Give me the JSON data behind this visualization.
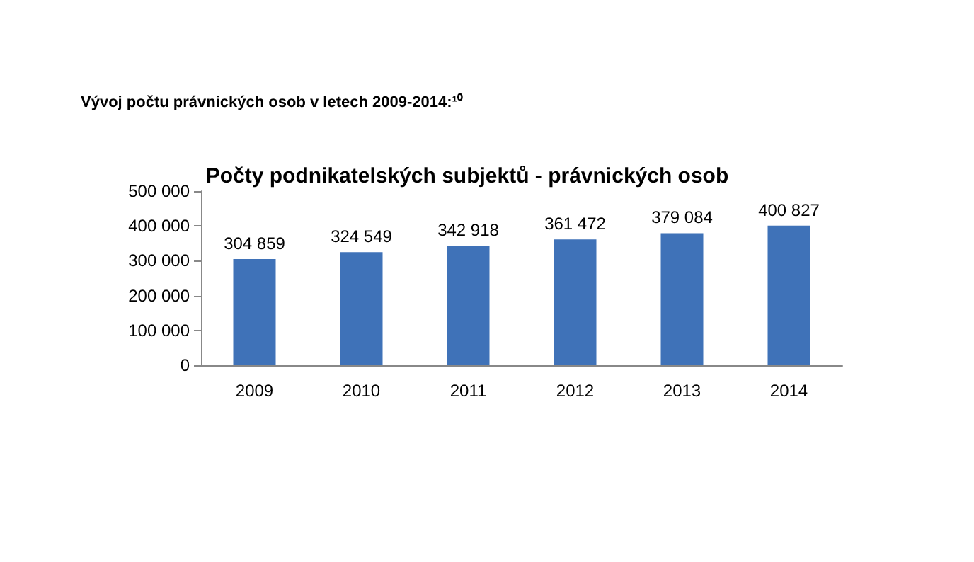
{
  "chart_data": {
    "type": "bar",
    "title": "Počty podnikatelských subjektů - právnických osob",
    "subtitle": "Vývoj počtu právnických osob v letech 2009-2014:¹⁰",
    "categories": [
      "2009",
      "2010",
      "2011",
      "2012",
      "2013",
      "2014"
    ],
    "values": [
      304859,
      324549,
      342918,
      361472,
      379084,
      400827
    ],
    "value_labels": [
      "304 859",
      "324 549",
      "342 918",
      "361 472",
      "379 084",
      "400 827"
    ],
    "color": "#3f72b8",
    "ylim": [
      0,
      500000
    ],
    "yticks": [
      {
        "value": 0,
        "label": "0"
      },
      {
        "value": 100000,
        "label": "100 000"
      },
      {
        "value": 200000,
        "label": "200 000"
      },
      {
        "value": 300000,
        "label": "300 000"
      },
      {
        "value": 400000,
        "label": "400 000"
      },
      {
        "value": 500000,
        "label": "500 000"
      }
    ],
    "grid": false
  }
}
